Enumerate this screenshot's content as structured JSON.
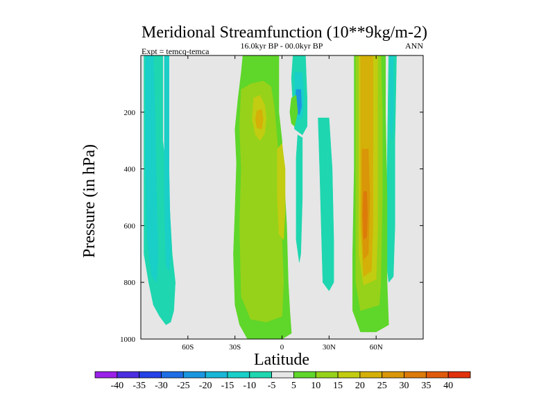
{
  "chart_data": {
    "type": "contour",
    "title": "Meridional Streamfunction (10**9kg/m-2)",
    "subtitle": "16.0kyr BP - 00.0kyr BP",
    "experiment_label": "Expt = temcq-temca",
    "season_label": "ANN",
    "xlabel": "Latitude",
    "ylabel": "Pressure (in hPa)",
    "xlim": [
      -90,
      90
    ],
    "ylim": [
      1000,
      0
    ],
    "xticks": [
      {
        "value": -60,
        "label": "60S"
      },
      {
        "value": -30,
        "label": "30S"
      },
      {
        "value": 0,
        "label": "0"
      },
      {
        "value": 30,
        "label": "30N"
      },
      {
        "value": 60,
        "label": "60N"
      }
    ],
    "yticks": [
      {
        "value": 200,
        "label": "200"
      },
      {
        "value": 400,
        "label": "400"
      },
      {
        "value": 600,
        "label": "600"
      },
      {
        "value": 800,
        "label": "800"
      },
      {
        "value": 1000,
        "label": "1000"
      }
    ],
    "background_color": "#e6e6e6",
    "colorbar": {
      "labels": [
        "-40",
        "-35",
        "-30",
        "-25",
        "-20",
        "-15",
        "-10",
        "-5",
        "5",
        "10",
        "15",
        "20",
        "25",
        "30",
        "35",
        "40"
      ],
      "colors": [
        "#9a1fe8",
        "#4b2ee0",
        "#2440e6",
        "#1f6ee6",
        "#1a96e0",
        "#19b6d6",
        "#19cfc8",
        "#1ed6b0",
        "#e6e6e6",
        "#5fd62a",
        "#96d21a",
        "#c2cc10",
        "#d4b008",
        "#d99608",
        "#dc7a0a",
        "#e05a0c",
        "#e0300c"
      ]
    },
    "regions": [
      {
        "label": "-10 to -5 band 80S-66S",
        "level": "-10",
        "color": "#1ed6b0",
        "points": [
          [
            -88,
            0
          ],
          [
            -76,
            0
          ],
          [
            -76,
            300
          ],
          [
            -72,
            500
          ],
          [
            -70,
            700
          ],
          [
            -68,
            800
          ],
          [
            -69,
            900
          ],
          [
            -71,
            940
          ],
          [
            -74,
            950
          ],
          [
            -78,
            920
          ],
          [
            -82,
            880
          ],
          [
            -85,
            800
          ],
          [
            -88,
            700
          ]
        ]
      },
      {
        "label": "-15 to -10 core 80S-72S",
        "level": "-15",
        "color": "#19cfc8",
        "points": [
          [
            -87,
            0
          ],
          [
            -82,
            0
          ],
          [
            -81,
            200
          ],
          [
            -80,
            500
          ],
          [
            -79,
            700
          ],
          [
            -80,
            800
          ],
          [
            -83,
            780
          ],
          [
            -86,
            650
          ],
          [
            -87,
            400
          ]
        ]
      },
      {
        "label": "-15 to -10 core 75S-70S",
        "level": "-15",
        "color": "#19cfc8",
        "points": [
          [
            -75,
            0
          ],
          [
            -72,
            0
          ],
          [
            -72,
            400
          ],
          [
            -71,
            700
          ],
          [
            -72,
            760
          ],
          [
            -74,
            740
          ],
          [
            -75,
            500
          ]
        ]
      },
      {
        "label": "5 to 10 band 35S-0",
        "level": "5",
        "color": "#5fd62a",
        "points": [
          [
            -25,
            0
          ],
          [
            -2,
            0
          ],
          [
            -2,
            200
          ],
          [
            0,
            300
          ],
          [
            2,
            500
          ],
          [
            3,
            600
          ],
          [
            4,
            800
          ],
          [
            5,
            900
          ],
          [
            6,
            980
          ],
          [
            0,
            1000
          ],
          [
            -22,
            1000
          ],
          [
            -27,
            950
          ],
          [
            -30,
            880
          ],
          [
            -31,
            700
          ],
          [
            -30,
            550
          ],
          [
            -29,
            380
          ],
          [
            -30,
            260
          ],
          [
            -28,
            150
          ],
          [
            -26,
            60
          ]
        ]
      },
      {
        "label": "10 to 15 mid 30S-5S",
        "level": "10",
        "color": "#96d21a",
        "points": [
          [
            -26,
            120
          ],
          [
            -20,
            100
          ],
          [
            -12,
            90
          ],
          [
            -7,
            110
          ],
          [
            -5,
            180
          ],
          [
            -3,
            300
          ],
          [
            -1,
            450
          ],
          [
            0,
            650
          ],
          [
            1,
            800
          ],
          [
            0,
            920
          ],
          [
            -10,
            940
          ],
          [
            -20,
            930
          ],
          [
            -26,
            850
          ],
          [
            -27,
            600
          ],
          [
            -26,
            400
          ],
          [
            -27,
            250
          ]
        ]
      },
      {
        "label": "15 to 20 core 18S-12S",
        "level": "15",
        "color": "#c2cc10",
        "points": [
          [
            -18,
            150
          ],
          [
            -14,
            140
          ],
          [
            -11,
            175
          ],
          [
            -10,
            220
          ],
          [
            -11,
            275
          ],
          [
            -14,
            300
          ],
          [
            -17,
            280
          ],
          [
            -19,
            225
          ]
        ]
      },
      {
        "label": "20 to 25 core 16S-13S",
        "level": "20",
        "color": "#d4b008",
        "points": [
          [
            -16,
            195
          ],
          [
            -13,
            190
          ],
          [
            -12,
            225
          ],
          [
            -13,
            260
          ],
          [
            -16,
            255
          ],
          [
            -17,
            225
          ]
        ]
      },
      {
        "label": "15 to 20 deep core near 0",
        "level": "15",
        "color": "#c2cc10",
        "points": [
          [
            -3,
            330
          ],
          [
            0,
            310
          ],
          [
            2,
            400
          ],
          [
            2,
            550
          ],
          [
            1,
            650
          ],
          [
            -2,
            630
          ],
          [
            -3,
            500
          ]
        ]
      },
      {
        "label": "-10 to -5 band 5N-15N",
        "level": "-10",
        "color": "#1ed6b0",
        "points": [
          [
            7,
            0
          ],
          [
            15,
            0
          ],
          [
            16,
            150
          ],
          [
            16,
            250
          ],
          [
            13,
            280
          ],
          [
            8,
            260
          ],
          [
            7,
            180
          ],
          [
            6,
            80
          ]
        ]
      },
      {
        "label": "-15 to -10 core 10N",
        "level": "-15",
        "color": "#19cfc8",
        "points": [
          [
            8,
            60
          ],
          [
            13,
            60
          ],
          [
            14,
            150
          ],
          [
            13,
            220
          ],
          [
            10,
            230
          ],
          [
            8,
            180
          ]
        ]
      },
      {
        "label": "-20 to -15 core 10N",
        "level": "-20",
        "color": "#1a96e0",
        "points": [
          [
            9,
            120
          ],
          [
            12,
            120
          ],
          [
            12.5,
            180
          ],
          [
            11,
            210
          ],
          [
            9,
            200
          ],
          [
            8.5,
            160
          ]
        ]
      },
      {
        "label": "5 to 10 patch 7N",
        "level": "5",
        "color": "#5fd62a",
        "points": [
          [
            6,
            150
          ],
          [
            9,
            140
          ],
          [
            10,
            200
          ],
          [
            8,
            250
          ],
          [
            6,
            240
          ],
          [
            5,
            200
          ]
        ]
      },
      {
        "label": "-10 to -5 column 10N",
        "level": "-10",
        "color": "#1ed6b0",
        "points": [
          [
            10,
            280
          ],
          [
            13,
            290
          ],
          [
            13,
            500
          ],
          [
            12,
            700
          ],
          [
            11,
            730
          ],
          [
            9,
            650
          ],
          [
            9,
            500
          ],
          [
            9,
            360
          ]
        ]
      },
      {
        "label": "-10 to -5 column 25N",
        "level": "-10",
        "color": "#1ed6b0",
        "points": [
          [
            23,
            220
          ],
          [
            30,
            220
          ],
          [
            32,
            400
          ],
          [
            33,
            650
          ],
          [
            33,
            800
          ],
          [
            30,
            830
          ],
          [
            26,
            800
          ],
          [
            25,
            600
          ],
          [
            24,
            400
          ]
        ]
      },
      {
        "label": "-10 to -5 column 70N",
        "level": "-10",
        "color": "#1ed6b0",
        "points": [
          [
            68,
            0
          ],
          [
            73,
            0
          ],
          [
            72,
            300
          ],
          [
            72,
            600
          ],
          [
            71,
            780
          ],
          [
            68,
            800
          ],
          [
            66,
            700
          ],
          [
            67,
            400
          ]
        ]
      },
      {
        "label": "-15 to -10 core 70N",
        "level": "-15",
        "color": "#19cfc8",
        "points": [
          [
            69,
            0
          ],
          [
            71,
            0
          ],
          [
            71,
            200
          ],
          [
            70,
            300
          ],
          [
            69,
            250
          ]
        ]
      },
      {
        "label": "5 to 10 band 45N-65N",
        "level": "5",
        "color": "#5fd62a",
        "points": [
          [
            46,
            0
          ],
          [
            66,
            0
          ],
          [
            66,
            200
          ],
          [
            67,
            500
          ],
          [
            67,
            800
          ],
          [
            68,
            950
          ],
          [
            60,
            975
          ],
          [
            50,
            975
          ],
          [
            45,
            900
          ],
          [
            45,
            700
          ],
          [
            46,
            400
          ]
        ]
      },
      {
        "label": "10 to 15 band 47N-63N",
        "level": "10",
        "color": "#96d21a",
        "points": [
          [
            47,
            0
          ],
          [
            63,
            0
          ],
          [
            64,
            200
          ],
          [
            64,
            500
          ],
          [
            63,
            800
          ],
          [
            62,
            880
          ],
          [
            50,
            900
          ],
          [
            47,
            800
          ],
          [
            47,
            400
          ],
          [
            47,
            150
          ]
        ]
      },
      {
        "label": "15 to 20 band 49N-61N",
        "level": "15",
        "color": "#c2cc10",
        "points": [
          [
            49,
            0
          ],
          [
            61,
            0
          ],
          [
            61,
            300
          ],
          [
            61,
            600
          ],
          [
            60,
            790
          ],
          [
            52,
            810
          ],
          [
            49,
            700
          ],
          [
            49,
            300
          ]
        ]
      },
      {
        "label": "20 to 25 band 50N-58N",
        "level": "20",
        "color": "#d4b008",
        "points": [
          [
            50,
            0
          ],
          [
            58,
            0
          ],
          [
            58,
            300
          ],
          [
            58,
            600
          ],
          [
            57,
            760
          ],
          [
            52,
            780
          ],
          [
            50,
            600
          ],
          [
            50,
            250
          ]
        ]
      },
      {
        "label": "25 to 30 core 52N",
        "level": "25",
        "color": "#d99608",
        "points": [
          [
            51,
            330
          ],
          [
            55,
            330
          ],
          [
            56,
            500
          ],
          [
            55,
            700
          ],
          [
            52,
            720
          ],
          [
            51,
            600
          ],
          [
            51,
            450
          ]
        ]
      },
      {
        "label": "30 to 35 core 52N",
        "level": "30",
        "color": "#dc7a0a",
        "points": [
          [
            52,
            480
          ],
          [
            54,
            480
          ],
          [
            54.5,
            560
          ],
          [
            54,
            640
          ],
          [
            52,
            650
          ],
          [
            51.5,
            560
          ]
        ]
      }
    ]
  }
}
